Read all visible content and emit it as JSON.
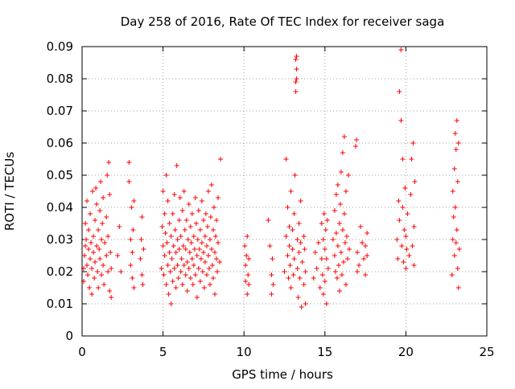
{
  "chart_data": {
    "type": "scatter",
    "title": "Day 258 of 2016, Rate Of TEC Index for receiver saga",
    "xlabel": "GPS time / hours",
    "ylabel": "ROTI / TECUs",
    "xlim": [
      0,
      25
    ],
    "ylim": [
      0,
      0.09
    ],
    "x_ticks": [
      0,
      5,
      10,
      15,
      20,
      25
    ],
    "y_ticks": [
      0,
      0.01,
      0.02,
      0.03,
      0.04,
      0.05,
      0.06,
      0.07,
      0.08,
      0.09
    ],
    "x_tick_labels": [
      "0",
      "5",
      "10",
      "15",
      "20",
      "25"
    ],
    "y_tick_labels": [
      "0",
      "0.01",
      "0.02",
      "0.03",
      "0.04",
      "0.05",
      "0.06",
      "0.07",
      "0.08",
      "0.09"
    ],
    "grid": true,
    "marker": "+",
    "marker_color": "#ff0000",
    "series_name": "ROTI",
    "points": [
      [
        0.1,
        0.021
      ],
      [
        0.1,
        0.017
      ],
      [
        0.15,
        0.025
      ],
      [
        0.2,
        0.028
      ],
      [
        0.2,
        0.035
      ],
      [
        0.25,
        0.03
      ],
      [
        0.3,
        0.042
      ],
      [
        0.3,
        0.022
      ],
      [
        0.35,
        0.019
      ],
      [
        0.4,
        0.027
      ],
      [
        0.4,
        0.033
      ],
      [
        0.45,
        0.015
      ],
      [
        0.5,
        0.024
      ],
      [
        0.5,
        0.038
      ],
      [
        0.55,
        0.029
      ],
      [
        0.6,
        0.013
      ],
      [
        0.6,
        0.021
      ],
      [
        0.65,
        0.045
      ],
      [
        0.7,
        0.031
      ],
      [
        0.7,
        0.026
      ],
      [
        0.75,
        0.018
      ],
      [
        0.8,
        0.036
      ],
      [
        0.8,
        0.023
      ],
      [
        0.85,
        0.046
      ],
      [
        0.9,
        0.028
      ],
      [
        0.9,
        0.041
      ],
      [
        0.95,
        0.02
      ],
      [
        1.0,
        0.033
      ],
      [
        1.0,
        0.015
      ],
      [
        1.05,
        0.027
      ],
      [
        1.1,
        0.039
      ],
      [
        1.1,
        0.024
      ],
      [
        1.15,
        0.048
      ],
      [
        1.2,
        0.03
      ],
      [
        1.2,
        0.019
      ],
      [
        1.25,
        0.035
      ],
      [
        1.3,
        0.022
      ],
      [
        1.3,
        0.043
      ],
      [
        1.35,
        0.016
      ],
      [
        1.4,
        0.029
      ],
      [
        1.5,
        0.025
      ],
      [
        1.5,
        0.037
      ],
      [
        1.55,
        0.05
      ],
      [
        1.6,
        0.02
      ],
      [
        1.6,
        0.031
      ],
      [
        1.65,
        0.054
      ],
      [
        1.7,
        0.014
      ],
      [
        1.7,
        0.044
      ],
      [
        1.75,
        0.026
      ],
      [
        1.8,
        0.021
      ],
      [
        1.8,
        0.012
      ],
      [
        2.2,
        0.025
      ],
      [
        2.3,
        0.034
      ],
      [
        2.4,
        0.02
      ],
      [
        2.9,
        0.054
      ],
      [
        2.9,
        0.048
      ],
      [
        3.0,
        0.03
      ],
      [
        3.0,
        0.022
      ],
      [
        3.05,
        0.04
      ],
      [
        3.1,
        0.026
      ],
      [
        3.1,
        0.018
      ],
      [
        3.15,
        0.033
      ],
      [
        3.2,
        0.015
      ],
      [
        3.2,
        0.042
      ],
      [
        3.6,
        0.024
      ],
      [
        3.65,
        0.03
      ],
      [
        3.7,
        0.019
      ],
      [
        3.7,
        0.037
      ],
      [
        3.75,
        0.016
      ],
      [
        3.8,
        0.027
      ],
      [
        4.9,
        0.021
      ],
      [
        4.95,
        0.034
      ],
      [
        5.0,
        0.028
      ],
      [
        5.0,
        0.045
      ],
      [
        5.05,
        0.019
      ],
      [
        5.1,
        0.038
      ],
      [
        5.1,
        0.025
      ],
      [
        5.15,
        0.032
      ],
      [
        5.2,
        0.05
      ],
      [
        5.2,
        0.016
      ],
      [
        5.25,
        0.029
      ],
      [
        5.3,
        0.042
      ],
      [
        5.3,
        0.022
      ],
      [
        5.35,
        0.013
      ],
      [
        5.4,
        0.035
      ],
      [
        5.4,
        0.026
      ],
      [
        5.45,
        0.02
      ],
      [
        5.5,
        0.031
      ],
      [
        5.5,
        0.01
      ],
      [
        5.55,
        0.024
      ],
      [
        5.6,
        0.038
      ],
      [
        5.6,
        0.017
      ],
      [
        5.65,
        0.028
      ],
      [
        5.7,
        0.021
      ],
      [
        5.7,
        0.044
      ],
      [
        5.75,
        0.033
      ],
      [
        5.8,
        0.026
      ],
      [
        5.8,
        0.015
      ],
      [
        5.85,
        0.053
      ],
      [
        5.9,
        0.03
      ],
      [
        5.9,
        0.022
      ],
      [
        5.95,
        0.018
      ],
      [
        6.0,
        0.036
      ],
      [
        6.0,
        0.027
      ],
      [
        6.05,
        0.043
      ],
      [
        6.1,
        0.02
      ],
      [
        6.1,
        0.031
      ],
      [
        6.15,
        0.024
      ],
      [
        6.2,
        0.016
      ],
      [
        6.2,
        0.039
      ],
      [
        6.25,
        0.028
      ],
      [
        6.3,
        0.022
      ],
      [
        6.3,
        0.045
      ],
      [
        6.35,
        0.033
      ],
      [
        6.4,
        0.019
      ],
      [
        6.4,
        0.027
      ],
      [
        6.45,
        0.036
      ],
      [
        6.5,
        0.023
      ],
      [
        6.5,
        0.014
      ],
      [
        6.55,
        0.03
      ],
      [
        6.6,
        0.041
      ],
      [
        6.6,
        0.021
      ],
      [
        6.65,
        0.026
      ],
      [
        6.7,
        0.034
      ],
      [
        6.7,
        0.018
      ],
      [
        6.75,
        0.029
      ],
      [
        6.8,
        0.024
      ],
      [
        6.8,
        0.038
      ],
      [
        6.85,
        0.016
      ],
      [
        6.9,
        0.031
      ],
      [
        6.9,
        0.022
      ],
      [
        6.95,
        0.027
      ],
      [
        7.0,
        0.043
      ],
      [
        7.0,
        0.019
      ],
      [
        7.05,
        0.035
      ],
      [
        7.1,
        0.025
      ],
      [
        7.1,
        0.012
      ],
      [
        7.15,
        0.03
      ],
      [
        7.2,
        0.021
      ],
      [
        7.2,
        0.039
      ],
      [
        7.25,
        0.027
      ],
      [
        7.3,
        0.017
      ],
      [
        7.3,
        0.033
      ],
      [
        7.35,
        0.024
      ],
      [
        7.4,
        0.029
      ],
      [
        7.4,
        0.042
      ],
      [
        7.45,
        0.02
      ],
      [
        7.5,
        0.036
      ],
      [
        7.5,
        0.026
      ],
      [
        7.55,
        0.015
      ],
      [
        7.6,
        0.031
      ],
      [
        7.6,
        0.023
      ],
      [
        7.65,
        0.038
      ],
      [
        7.7,
        0.028
      ],
      [
        7.7,
        0.019
      ],
      [
        7.75,
        0.034
      ],
      [
        7.8,
        0.025
      ],
      [
        7.8,
        0.045
      ],
      [
        7.85,
        0.021
      ],
      [
        7.9,
        0.03
      ],
      [
        7.9,
        0.016
      ],
      [
        7.95,
        0.037
      ],
      [
        8.0,
        0.027
      ],
      [
        8.0,
        0.047
      ],
      [
        8.05,
        0.022
      ],
      [
        8.1,
        0.033
      ],
      [
        8.1,
        0.018
      ],
      [
        8.15,
        0.04
      ],
      [
        8.2,
        0.026
      ],
      [
        8.2,
        0.013
      ],
      [
        8.25,
        0.031
      ],
      [
        8.3,
        0.024
      ],
      [
        8.3,
        0.036
      ],
      [
        8.35,
        0.02
      ],
      [
        8.4,
        0.029
      ],
      [
        8.4,
        0.043
      ],
      [
        8.5,
        0.023
      ],
      [
        8.55,
        0.055
      ],
      [
        10.05,
        0.028
      ],
      [
        10.1,
        0.022
      ],
      [
        10.1,
        0.017
      ],
      [
        10.15,
        0.025
      ],
      [
        10.2,
        0.013
      ],
      [
        10.2,
        0.031
      ],
      [
        10.25,
        0.019
      ],
      [
        10.3,
        0.024
      ],
      [
        10.3,
        0.016
      ],
      [
        11.5,
        0.036
      ],
      [
        11.6,
        0.028
      ],
      [
        11.7,
        0.019
      ],
      [
        11.7,
        0.013
      ],
      [
        11.75,
        0.024
      ],
      [
        11.8,
        0.016
      ],
      [
        12.5,
        0.02
      ],
      [
        12.6,
        0.031
      ],
      [
        12.6,
        0.055
      ],
      [
        12.7,
        0.025
      ],
      [
        12.7,
        0.04
      ],
      [
        12.75,
        0.018
      ],
      [
        12.8,
        0.034
      ],
      [
        12.8,
        0.028
      ],
      [
        12.85,
        0.022
      ],
      [
        12.9,
        0.045
      ],
      [
        12.9,
        0.015
      ],
      [
        13.0,
        0.027
      ],
      [
        13.0,
        0.033
      ],
      [
        13.05,
        0.019
      ],
      [
        13.1,
        0.038
      ],
      [
        13.1,
        0.024
      ],
      [
        13.15,
        0.05
      ],
      [
        13.2,
        0.086
      ],
      [
        13.2,
        0.079
      ],
      [
        13.25,
        0.083
      ],
      [
        13.2,
        0.076
      ],
      [
        13.25,
        0.08
      ],
      [
        13.25,
        0.087
      ],
      [
        13.3,
        0.03
      ],
      [
        13.3,
        0.021
      ],
      [
        13.35,
        0.012
      ],
      [
        13.4,
        0.035
      ],
      [
        13.4,
        0.026
      ],
      [
        13.45,
        0.018
      ],
      [
        13.5,
        0.042
      ],
      [
        13.5,
        0.029
      ],
      [
        13.55,
        0.009
      ],
      [
        13.6,
        0.023
      ],
      [
        13.7,
        0.031
      ],
      [
        13.7,
        0.016
      ],
      [
        13.75,
        0.027
      ],
      [
        13.8,
        0.01
      ],
      [
        13.8,
        0.02
      ],
      [
        14.3,
        0.018
      ],
      [
        14.4,
        0.026
      ],
      [
        14.5,
        0.021
      ],
      [
        14.6,
        0.029
      ],
      [
        14.7,
        0.015
      ],
      [
        14.8,
        0.024
      ],
      [
        14.8,
        0.035
      ],
      [
        14.85,
        0.019
      ],
      [
        14.9,
        0.03
      ],
      [
        14.9,
        0.013
      ],
      [
        14.95,
        0.038
      ],
      [
        15.0,
        0.027
      ],
      [
        15.0,
        0.017
      ],
      [
        15.05,
        0.033
      ],
      [
        15.1,
        0.024
      ],
      [
        15.1,
        0.01
      ],
      [
        15.15,
        0.036
      ],
      [
        15.2,
        0.021
      ],
      [
        15.5,
        0.03
      ],
      [
        15.6,
        0.025
      ],
      [
        15.6,
        0.039
      ],
      [
        15.65,
        0.02
      ],
      [
        15.7,
        0.044
      ],
      [
        15.7,
        0.032
      ],
      [
        15.75,
        0.018
      ],
      [
        15.8,
        0.028
      ],
      [
        15.8,
        0.047
      ],
      [
        15.85,
        0.022
      ],
      [
        15.9,
        0.035
      ],
      [
        15.9,
        0.014
      ],
      [
        15.95,
        0.041
      ],
      [
        16.0,
        0.026
      ],
      [
        16.0,
        0.051
      ],
      [
        16.05,
        0.019
      ],
      [
        16.1,
        0.033
      ],
      [
        16.1,
        0.057
      ],
      [
        16.15,
        0.023
      ],
      [
        16.2,
        0.062
      ],
      [
        16.2,
        0.038
      ],
      [
        16.25,
        0.029
      ],
      [
        16.3,
        0.045
      ],
      [
        16.3,
        0.016
      ],
      [
        16.35,
        0.031
      ],
      [
        16.4,
        0.024
      ],
      [
        16.45,
        0.05
      ],
      [
        16.5,
        0.027
      ],
      [
        16.9,
        0.059
      ],
      [
        16.95,
        0.061
      ],
      [
        17.0,
        0.02
      ],
      [
        17.0,
        0.026
      ],
      [
        17.1,
        0.022
      ],
      [
        17.2,
        0.034
      ],
      [
        17.3,
        0.029
      ],
      [
        17.4,
        0.024
      ],
      [
        17.5,
        0.019
      ],
      [
        17.5,
        0.028
      ],
      [
        17.6,
        0.025
      ],
      [
        17.6,
        0.032
      ],
      [
        19.45,
        0.03
      ],
      [
        19.5,
        0.024
      ],
      [
        19.55,
        0.042
      ],
      [
        19.6,
        0.036
      ],
      [
        19.6,
        0.076
      ],
      [
        19.7,
        0.089
      ],
      [
        19.7,
        0.067
      ],
      [
        19.75,
        0.028
      ],
      [
        19.8,
        0.055
      ],
      [
        19.8,
        0.04
      ],
      [
        19.85,
        0.023
      ],
      [
        19.9,
        0.033
      ],
      [
        19.95,
        0.046
      ],
      [
        20.0,
        0.031
      ],
      [
        20.0,
        0.021
      ],
      [
        20.05,
        0.027
      ],
      [
        20.1,
        0.038
      ],
      [
        20.2,
        0.025
      ],
      [
        20.3,
        0.044
      ],
      [
        20.35,
        0.055
      ],
      [
        20.4,
        0.028
      ],
      [
        20.45,
        0.06
      ],
      [
        20.5,
        0.034
      ],
      [
        20.5,
        0.022
      ],
      [
        20.55,
        0.048
      ],
      [
        22.85,
        0.019
      ],
      [
        22.9,
        0.045
      ],
      [
        22.9,
        0.03
      ],
      [
        22.95,
        0.037
      ],
      [
        23.0,
        0.052
      ],
      [
        23.0,
        0.025
      ],
      [
        23.05,
        0.04
      ],
      [
        23.05,
        0.063
      ],
      [
        23.1,
        0.058
      ],
      [
        23.1,
        0.029
      ],
      [
        23.15,
        0.067
      ],
      [
        23.15,
        0.033
      ],
      [
        23.2,
        0.021
      ],
      [
        23.2,
        0.048
      ],
      [
        23.25,
        0.015
      ],
      [
        23.25,
        0.06
      ],
      [
        23.3,
        0.027
      ]
    ]
  }
}
